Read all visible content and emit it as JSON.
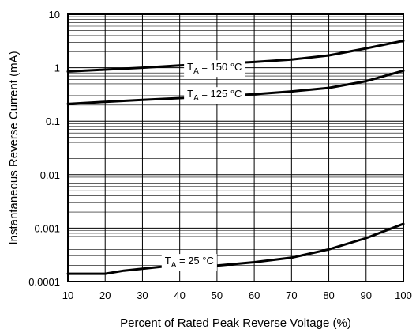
{
  "chart_data": {
    "type": "line",
    "xlabel": "Percent of Rated Peak Reverse Voltage (%)",
    "ylabel": "Instantaneous Reverse Current (mA)",
    "xlim": [
      10,
      100
    ],
    "ylim": [
      0.0001,
      10
    ],
    "yscale": "log",
    "grid": true,
    "x_ticks": [
      "10",
      "20",
      "30",
      "40",
      "50",
      "60",
      "70",
      "80",
      "90",
      "100"
    ],
    "y_ticks": [
      "0.0001",
      "0.001",
      "0.01",
      "0.1",
      "1",
      "10"
    ],
    "series": [
      {
        "name": "TA = 150 °C",
        "label_main": "T",
        "label_sub": "A",
        "label_rest": " = 150 °C",
        "label_at": [
          42,
          1.05
        ],
        "x": [
          10,
          20,
          30,
          40,
          50,
          60,
          70,
          80,
          90,
          100
        ],
        "y": [
          0.85,
          0.92,
          1.0,
          1.1,
          1.18,
          1.28,
          1.42,
          1.7,
          2.3,
          3.2
        ]
      },
      {
        "name": "TA = 125 °C",
        "label_main": "T",
        "label_sub": "A",
        "label_rest": " = 125 °C",
        "label_at": [
          42,
          0.33
        ],
        "x": [
          10,
          20,
          30,
          40,
          50,
          60,
          70,
          80,
          90,
          100
        ],
        "y": [
          0.21,
          0.23,
          0.25,
          0.27,
          0.29,
          0.32,
          0.36,
          0.42,
          0.56,
          0.88
        ]
      },
      {
        "name": "TA = 25 °C",
        "label_main": "T",
        "label_sub": "A",
        "label_rest": " = 25 °C",
        "label_at": [
          36,
          0.00025
        ],
        "x": [
          10,
          20,
          25,
          35,
          50,
          60,
          70,
          80,
          90,
          100
        ],
        "y": [
          0.00014,
          0.00014,
          0.00016,
          0.00019,
          0.0002,
          0.00023,
          0.00028,
          0.0004,
          0.00065,
          0.0012
        ]
      }
    ]
  }
}
